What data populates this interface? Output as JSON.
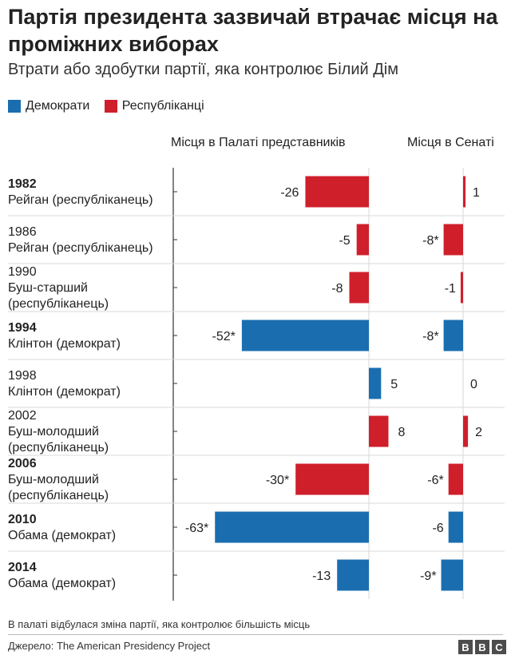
{
  "title": "Партія президента зазвичай втрачає місця на проміжних виборах",
  "subtitle": "Втрати або здобутки партії, яка контролює Білий Дім",
  "legend": {
    "dem": "Демократи",
    "rep": "Республіканці"
  },
  "colors": {
    "dem": "#1a6eb0",
    "rep": "#cf1f2b"
  },
  "footnote": "В палаті відбулася зміна партії, яка контролює більшість місць",
  "source": "Джерело: The American Presidency Project",
  "bbc_letters": [
    "B",
    "B",
    "C"
  ],
  "chart_data": {
    "type": "bar",
    "orientation": "horizontal",
    "panels": [
      {
        "name": "Місця в Палаті представників",
        "key": "house",
        "xlim": [
          -63,
          8
        ]
      },
      {
        "name": "Місця в Сенаті",
        "key": "senate",
        "xlim": [
          -9,
          2
        ]
      }
    ],
    "rows": [
      {
        "year": "1982",
        "bold": true,
        "president": "Рейган (республіканець)",
        "party": "rep",
        "house": -26,
        "house_label": "-26",
        "senate": 1,
        "senate_label": "1"
      },
      {
        "year": "1986",
        "bold": false,
        "president": "Рейган (республіканець)",
        "party": "rep",
        "house": -5,
        "house_label": "-5",
        "senate": -8,
        "senate_label": "-8*"
      },
      {
        "year": "1990",
        "bold": false,
        "president": "Буш-старший (республіканець)",
        "party": "rep",
        "house": -8,
        "house_label": "-8",
        "senate": -1,
        "senate_label": "-1"
      },
      {
        "year": "1994",
        "bold": true,
        "president": "Клінтон (демократ)",
        "party": "dem",
        "house": -52,
        "house_label": "-52*",
        "senate": -8,
        "senate_label": "-8*"
      },
      {
        "year": "1998",
        "bold": false,
        "president": "Клінтон (демократ)",
        "party": "dem",
        "house": 5,
        "house_label": "5",
        "senate": 0,
        "senate_label": "0"
      },
      {
        "year": "2002",
        "bold": false,
        "president": "Буш-молодший (республіканець)",
        "party": "rep",
        "house": 8,
        "house_label": "8",
        "senate": 2,
        "senate_label": "2"
      },
      {
        "year": "2006",
        "bold": true,
        "president": "Буш-молодший (республіканець)",
        "party": "rep",
        "house": -30,
        "house_label": "-30*",
        "senate": -6,
        "senate_label": "-6*"
      },
      {
        "year": "2010",
        "bold": true,
        "president": "Обама (демократ)",
        "party": "dem",
        "house": -63,
        "house_label": "-63*",
        "senate": -6,
        "senate_label": "-6"
      },
      {
        "year": "2014",
        "bold": true,
        "president": "Обама (демократ)",
        "party": "dem",
        "house": -13,
        "house_label": "-13",
        "senate": -9,
        "senate_label": "-9*"
      }
    ]
  }
}
